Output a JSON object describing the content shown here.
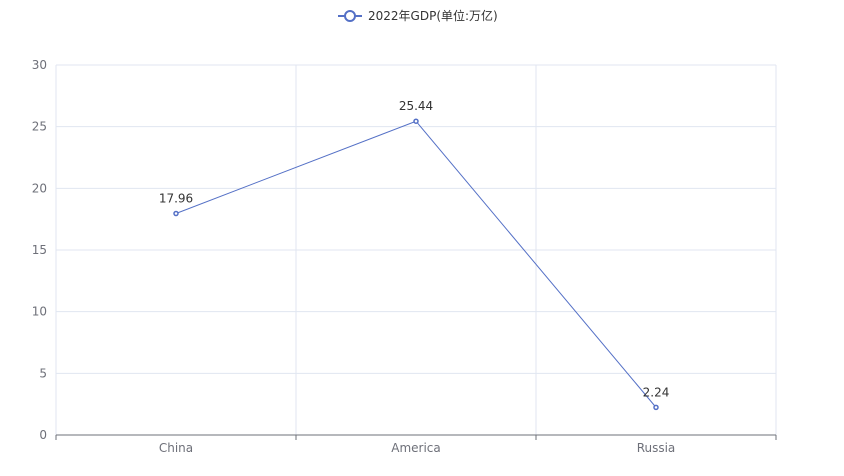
{
  "chart_data": {
    "type": "line",
    "categories": [
      "China",
      "America",
      "Russia"
    ],
    "series": [
      {
        "name": "2022年GDP(单位:万亿)",
        "values": [
          17.96,
          25.44,
          2.24
        ],
        "color": "#5470c6"
      }
    ],
    "ylim": [
      0,
      30
    ],
    "yticks": [
      0,
      5,
      10,
      15,
      20,
      25,
      30
    ],
    "grid": true,
    "legend": "top-center",
    "data_labels": true
  }
}
